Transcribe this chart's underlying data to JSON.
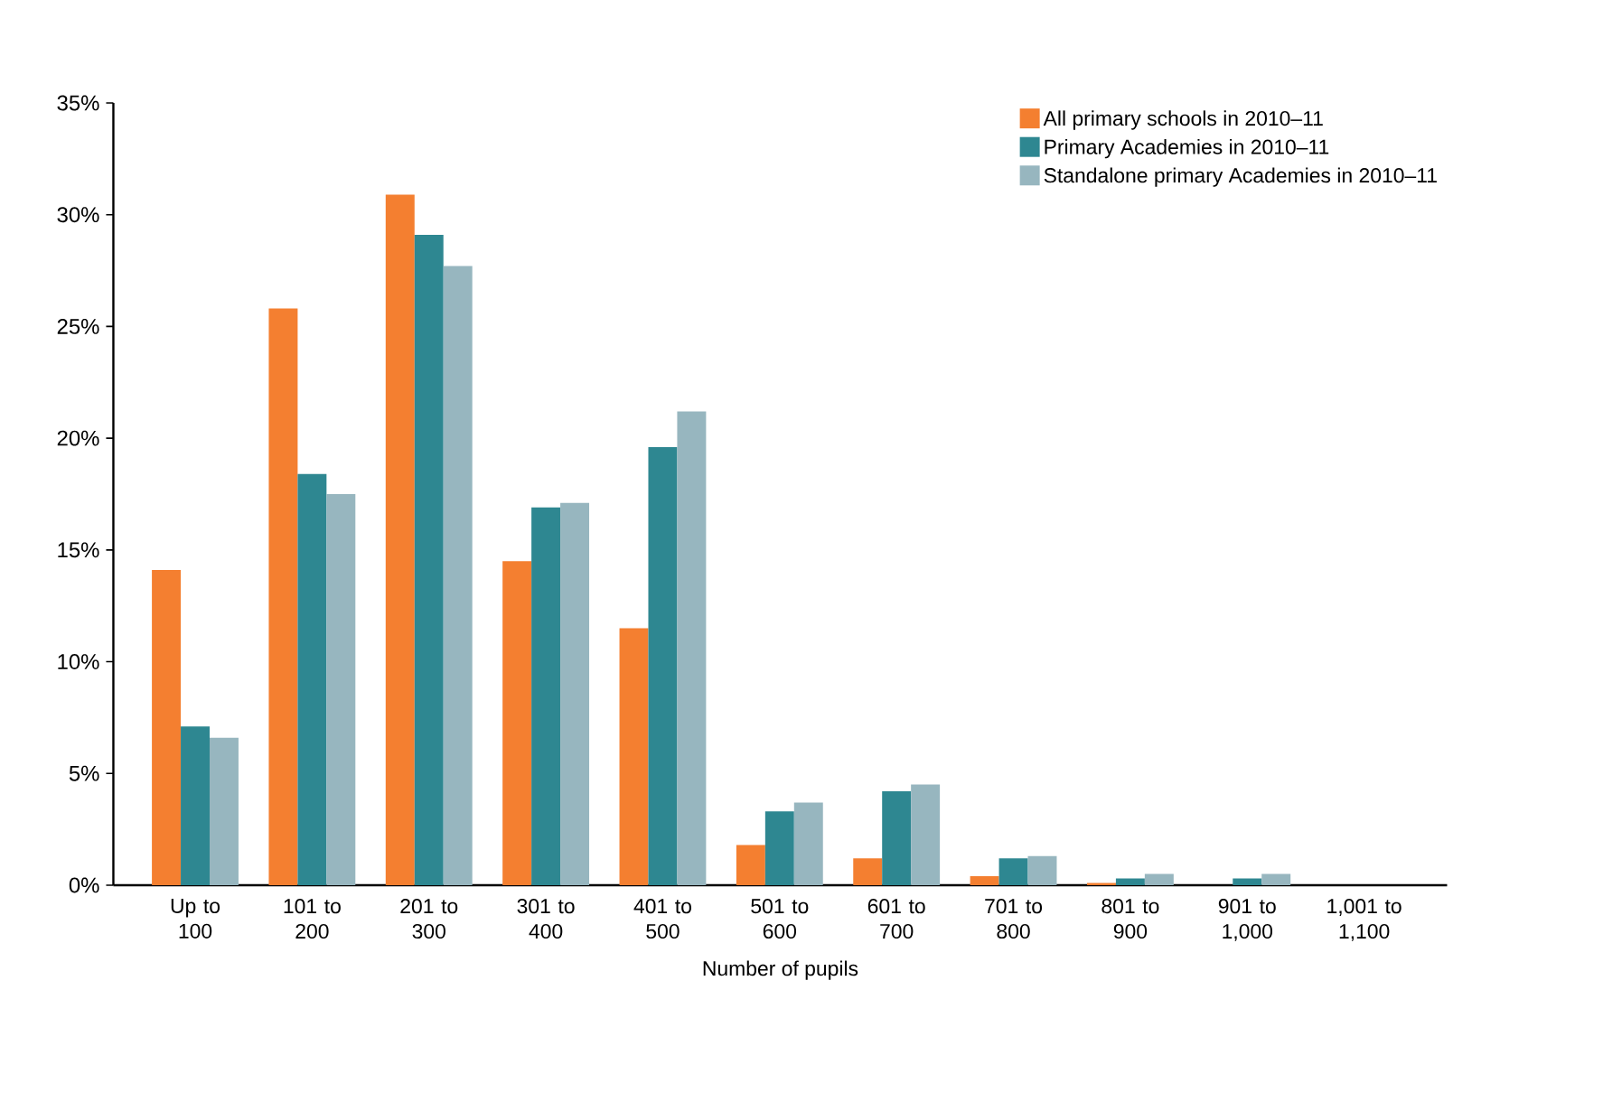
{
  "chart_data": {
    "type": "bar",
    "xlabel": "Number of pupils",
    "categories": [
      "Up to 100",
      "101 to 200",
      "201 to 300",
      "301 to 400",
      "401 to 500",
      "501 to 600",
      "601 to 700",
      "701 to 800",
      "801 to 900",
      "901 to 1,000",
      "1,001 to 1,100"
    ],
    "series": [
      {
        "name": "All primary schools in 2010–11",
        "color": "#f47f30",
        "values": [
          14.1,
          25.8,
          30.9,
          14.5,
          11.5,
          1.8,
          1.2,
          0.4,
          0.1,
          0,
          0
        ]
      },
      {
        "name": "Primary Academies in 2010–11",
        "color": "#2e8791",
        "values": [
          7.1,
          18.4,
          29.1,
          16.9,
          19.6,
          3.3,
          4.2,
          1.2,
          0.3,
          0.3,
          0
        ]
      },
      {
        "name": "Standalone primary Academies in 2010–11",
        "color": "#97b6bf",
        "values": [
          6.6,
          17.5,
          27.7,
          17.1,
          21.2,
          3.7,
          4.5,
          1.3,
          0.5,
          0.5,
          0
        ]
      }
    ],
    "ylim": [
      0,
      35
    ],
    "yticks": [
      {
        "value": 0,
        "label": "0%"
      },
      {
        "value": 5,
        "label": "5%"
      },
      {
        "value": 10,
        "label": "10%"
      },
      {
        "value": 15,
        "label": "15%"
      },
      {
        "value": 20,
        "label": "20%"
      },
      {
        "value": 25,
        "label": "25%"
      },
      {
        "value": 30,
        "label": "30%"
      },
      {
        "value": 35,
        "label": "35%"
      }
    ],
    "grid": false,
    "legend": "top right"
  }
}
